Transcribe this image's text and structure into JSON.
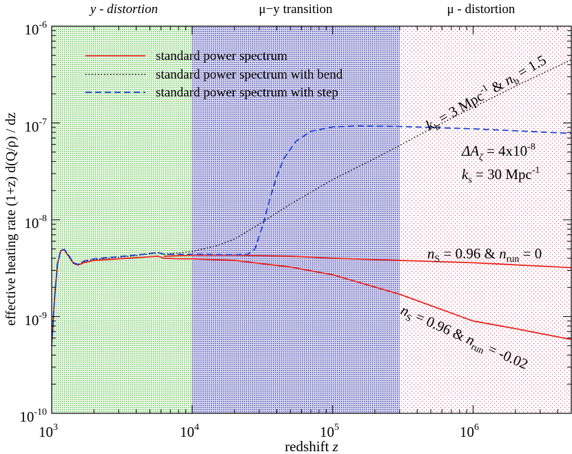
{
  "chart_data": {
    "type": "line",
    "title": "",
    "xlabel": "redshift z",
    "ylabel": "effective heating rate (1+z) d(Q/ρ) / dz",
    "x_scale": "log",
    "y_scale": "log",
    "xlim": [
      1000,
      5000000
    ],
    "ylim": [
      1e-10,
      1e-06
    ],
    "grid": false,
    "legend_position": "top-left",
    "x_ticks": [
      {
        "value": 1000,
        "label": "10",
        "exp": "3"
      },
      {
        "value": 10000,
        "label": "10",
        "exp": "4"
      },
      {
        "value": 100000,
        "label": "10",
        "exp": "5"
      },
      {
        "value": 1000000,
        "label": "10",
        "exp": "6"
      }
    ],
    "y_ticks": [
      {
        "value": 1e-10,
        "label": "10",
        "exp": "-10"
      },
      {
        "value": 1e-09,
        "label": "10",
        "exp": "-9"
      },
      {
        "value": 1e-08,
        "label": "10",
        "exp": "-8"
      },
      {
        "value": 1e-07,
        "label": "10",
        "exp": "-7"
      },
      {
        "value": 1e-06,
        "label": "10",
        "exp": "-6"
      }
    ],
    "regions": [
      {
        "label": "y - distortion",
        "x_range": [
          1000,
          10000
        ],
        "color": "#4fbf3f"
      },
      {
        "label": "μ−y transition",
        "x_range": [
          10000,
          300000
        ],
        "color": "#3a3aa8"
      },
      {
        "label": "μ - distortion",
        "x_range": [
          300000,
          5000000
        ],
        "color": "#d9507a"
      }
    ],
    "series": [
      {
        "name": "standard power spectrum",
        "color": "#e8231d",
        "style": "solid",
        "points": [
          [
            1000,
            5e-10
          ],
          [
            1050,
            1.6e-09
          ],
          [
            1100,
            3.5e-09
          ],
          [
            1160,
            4.8e-09
          ],
          [
            1230,
            4.9e-09
          ],
          [
            1320,
            4.2e-09
          ],
          [
            1430,
            3.55e-09
          ],
          [
            1540,
            3.4e-09
          ],
          [
            1700,
            3.6e-09
          ],
          [
            2000,
            3.8e-09
          ],
          [
            3000,
            3.95e-09
          ],
          [
            4500,
            4.1e-09
          ],
          [
            5700,
            4.2e-09
          ],
          [
            6300,
            4e-09
          ],
          [
            8000,
            3.95e-09
          ],
          [
            10000,
            3.95e-09
          ],
          [
            20000,
            3.8e-09
          ],
          [
            50000,
            3.25e-09
          ],
          [
            100000,
            2.7e-09
          ],
          [
            300000,
            1.7e-09
          ],
          [
            1000000,
            9e-10
          ],
          [
            2000000,
            7.5e-10
          ],
          [
            5000000,
            5.8e-10
          ]
        ]
      },
      {
        "name": "standard power spectrum",
        "color": "#e8231d",
        "style": "solid",
        "points": [
          [
            6300,
            4.2e-09
          ],
          [
            10000,
            4.3e-09
          ],
          [
            20000,
            4.3e-09
          ],
          [
            50000,
            4.2e-09
          ],
          [
            100000,
            4e-09
          ],
          [
            300000,
            3.8e-09
          ],
          [
            1000000,
            3.6e-09
          ],
          [
            5000000,
            3.2e-09
          ]
        ]
      },
      {
        "name": "standard power spectrum with bend",
        "color": "#000000",
        "style": "dotted",
        "points": [
          [
            1000,
            5e-10
          ],
          [
            1050,
            1.6e-09
          ],
          [
            1100,
            3.5e-09
          ],
          [
            1160,
            4.8e-09
          ],
          [
            1230,
            4.9e-09
          ],
          [
            1320,
            4.2e-09
          ],
          [
            1430,
            3.55e-09
          ],
          [
            1540,
            3.45e-09
          ],
          [
            1700,
            3.7e-09
          ],
          [
            2000,
            3.9e-09
          ],
          [
            3000,
            4.1e-09
          ],
          [
            4500,
            4.35e-09
          ],
          [
            5700,
            4.55e-09
          ],
          [
            6300,
            4.4e-09
          ],
          [
            10000,
            4.7e-09
          ],
          [
            15000,
            5.4e-09
          ],
          [
            20000,
            6.3e-09
          ],
          [
            30000,
            9e-09
          ],
          [
            50000,
            1.45e-08
          ],
          [
            100000,
            2.6e-08
          ],
          [
            200000,
            4.3e-08
          ],
          [
            500000,
            8.7e-08
          ],
          [
            1000000,
            1.45e-07
          ],
          [
            2000000,
            2.4e-07
          ],
          [
            5000000,
            4.5e-07
          ]
        ]
      },
      {
        "name": "standard power spectrum with step",
        "color": "#1f3fd6",
        "style": "dashed",
        "points": [
          [
            1000,
            5e-10
          ],
          [
            1050,
            1.6e-09
          ],
          [
            1100,
            3.5e-09
          ],
          [
            1160,
            4.8e-09
          ],
          [
            1230,
            4.95e-09
          ],
          [
            1320,
            4.3e-09
          ],
          [
            1430,
            3.6e-09
          ],
          [
            1540,
            3.45e-09
          ],
          [
            1700,
            3.75e-09
          ],
          [
            2000,
            3.95e-09
          ],
          [
            3000,
            4.15e-09
          ],
          [
            4500,
            4.4e-09
          ],
          [
            5700,
            4.6e-09
          ],
          [
            6300,
            4.4e-09
          ],
          [
            10000,
            4.4e-09
          ],
          [
            20000,
            4.35e-09
          ],
          [
            25000,
            4.4e-09
          ],
          [
            28000,
            5e-09
          ],
          [
            32000,
            9e-09
          ],
          [
            36000,
            1.7e-08
          ],
          [
            40000,
            2.8e-08
          ],
          [
            45000,
            4.3e-08
          ],
          [
            55000,
            6.5e-08
          ],
          [
            70000,
            8.2e-08
          ],
          [
            100000,
            9.1e-08
          ],
          [
            150000,
            9.3e-08
          ],
          [
            300000,
            9.2e-08
          ],
          [
            1000000,
            8.7e-08
          ],
          [
            2000000,
            8.3e-08
          ],
          [
            5000000,
            7.8e-08
          ]
        ]
      }
    ],
    "annotations": [
      {
        "id": "bend",
        "text": "k_b = 3 Mpc^-1 & n_b = 1.5"
      },
      {
        "id": "step",
        "text": "ΔA_ζ = 4x10^-8, k_s = 30 Mpc^-1"
      },
      {
        "id": "run0",
        "text": "n_S = 0.96 & n_run = 0"
      },
      {
        "id": "run002",
        "text": "n_S = 0.96 & n_run = -0.02"
      }
    ]
  },
  "text": {
    "region_y": "y - distortion",
    "region_transition": "μ−y transition",
    "region_mu": "μ - distortion",
    "legend_1": "standard power spectrum",
    "legend_2": "standard power spectrum with bend",
    "legend_3": "standard power spectrum with step",
    "xlabel_main": "redshift ",
    "xlabel_var": "z",
    "ylabel": "effective heating rate (1+z) d(Q/ρ) / dz",
    "ann_bend_k": "k",
    "ann_bend_ksub": "b",
    "ann_bend_mid": " = 3 Mpc",
    "ann_bend_exp": "-1",
    "ann_bend_and": " & ",
    "ann_bend_n": "n",
    "ann_bend_nsub": "b",
    "ann_bend_end": " = 1.5",
    "ann_step_delta": "ΔA",
    "ann_step_sub": "ζ",
    "ann_step_mid": " = 4x10",
    "ann_step_exp": "-8",
    "ann_ks_k": "k",
    "ann_ks_sub": "s",
    "ann_ks_mid": " = 30 Mpc",
    "ann_ks_exp": "-1",
    "ann_r0_n": "n",
    "ann_r0_nsub": "S",
    "ann_r0_mid": " = 0.96 & ",
    "ann_r0_n2": "n",
    "ann_r0_n2sub": "run",
    "ann_r0_end": " = 0",
    "ann_r1_n": "n",
    "ann_r1_nsub": "S",
    "ann_r1_mid": " = 0.96 & ",
    "ann_r1_n2": "n",
    "ann_r1_n2sub": "run",
    "ann_r1_end": " = -0.02"
  }
}
